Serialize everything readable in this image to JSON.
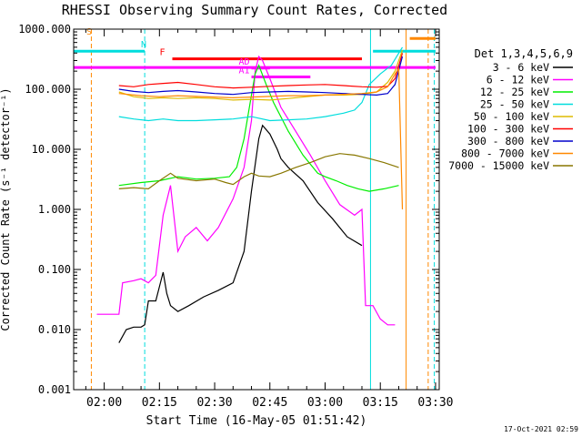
{
  "chart_data": {
    "type": "line",
    "title": "RHESSI Observing Summary Count Rates, Corrected",
    "xlabel": "Start Time (16-May-05 01:51:42)",
    "ylabel": "Corrected Count Rate (s⁻¹ detector⁻¹)",
    "yscale": "log",
    "xlim": [
      "01:51:42",
      "03:31:00"
    ],
    "ylim": [
      0.001,
      1000
    ],
    "x_ticks": [
      "02:00",
      "02:15",
      "02:30",
      "02:45",
      "03:00",
      "03:15",
      "03:30"
    ],
    "y_ticks": [
      "0.001",
      "0.010",
      "0.100",
      "1.000",
      "10.000",
      "100.000",
      "1000.000"
    ],
    "grid": false,
    "legend": {
      "placement": "right",
      "header": "Det 1,3,4,5,6,9",
      "entries": [
        {
          "label": "3 - 6 keV",
          "color": "#000000"
        },
        {
          "label": "6 - 12 keV",
          "color": "#ff00ff"
        },
        {
          "label": "12 - 25 keV",
          "color": "#00ee00"
        },
        {
          "label": "25 - 50 keV",
          "color": "#00dddd"
        },
        {
          "label": "50 - 100 keV",
          "color": "#ddbb00"
        },
        {
          "label": "100 - 300 keV",
          "color": "#ff0000"
        },
        {
          "label": "300 - 800 keV",
          "color": "#0000cc"
        },
        {
          "label": "800 - 7000 keV",
          "color": "#ff8800"
        },
        {
          "label": "7000 - 15000 keV",
          "color": "#887700"
        }
      ]
    },
    "series": [
      {
        "name": "3 - 6 keV",
        "color": "#000000",
        "x": [
          "02:04",
          "02:06",
          "02:08",
          "02:10",
          "02:11",
          "02:12",
          "02:14",
          "02:16",
          "02:17",
          "02:18",
          "02:20",
          "02:23",
          "02:27",
          "02:31",
          "02:35",
          "02:38",
          "02:40",
          "02:42",
          "02:43",
          "02:45",
          "02:47",
          "02:48",
          "02:50",
          "02:54",
          "02:58",
          "03:02",
          "03:06",
          "03:10"
        ],
        "values": [
          0.006,
          0.01,
          0.011,
          0.011,
          0.012,
          0.03,
          0.03,
          0.09,
          0.04,
          0.025,
          0.02,
          0.025,
          0.035,
          0.045,
          0.06,
          0.2,
          2.0,
          15,
          25,
          18,
          10,
          7,
          5,
          3,
          1.3,
          0.7,
          0.35,
          0.25
        ]
      },
      {
        "name": "6 - 12 keV",
        "color": "#ff00ff",
        "x": [
          "01:58",
          "02:04",
          "02:05",
          "02:08",
          "02:10",
          "02:12",
          "02:14",
          "02:16",
          "02:18",
          "02:20",
          "02:22",
          "02:25",
          "02:28",
          "02:31",
          "02:35",
          "02:38",
          "02:40",
          "02:41",
          "02:42",
          "02:43",
          "02:45",
          "02:48",
          "02:52",
          "02:56",
          "03:00",
          "03:04",
          "03:08",
          "03:10",
          "03:11",
          "03:13",
          "03:15",
          "03:17",
          "03:19"
        ],
        "values": [
          0.018,
          0.018,
          0.06,
          0.065,
          0.07,
          0.06,
          0.08,
          0.8,
          2.5,
          0.2,
          0.35,
          0.5,
          0.3,
          0.5,
          1.5,
          5,
          30,
          200,
          350,
          300,
          150,
          50,
          20,
          8,
          3,
          1.2,
          0.8,
          1.0,
          0.025,
          0.025,
          0.015,
          0.012,
          0.012
        ]
      },
      {
        "name": "12 - 25 keV",
        "color": "#00ee00",
        "x": [
          "02:04",
          "02:10",
          "02:15",
          "02:20",
          "02:25",
          "02:30",
          "02:34",
          "02:36",
          "02:38",
          "02:40",
          "02:41",
          "02:42",
          "02:44",
          "02:46",
          "02:50",
          "02:54",
          "02:58",
          "03:00",
          "03:03",
          "03:06",
          "03:09",
          "03:12",
          "03:16",
          "03:20"
        ],
        "values": [
          2.5,
          2.8,
          3.0,
          3.5,
          3.2,
          3.3,
          3.5,
          5,
          15,
          80,
          180,
          250,
          120,
          60,
          20,
          8,
          4,
          3.5,
          3.0,
          2.5,
          2.2,
          2.0,
          2.2,
          2.5
        ]
      },
      {
        "name": "25 - 50 keV",
        "color": "#00dddd",
        "x": [
          "02:04",
          "02:08",
          "02:12",
          "02:16",
          "02:20",
          "02:25",
          "02:30",
          "02:35",
          "02:40",
          "02:45",
          "02:50",
          "02:55",
          "03:00",
          "03:05",
          "03:08",
          "03:10",
          "03:12",
          "03:15",
          "03:18",
          "03:20",
          "03:21"
        ],
        "values": [
          35,
          32,
          30,
          32,
          30,
          30,
          31,
          32,
          35,
          30,
          31,
          32,
          35,
          40,
          45,
          60,
          120,
          180,
          250,
          400,
          500
        ]
      },
      {
        "name": "50 - 100 keV",
        "color": "#ddbb00",
        "x": [
          "02:04",
          "02:08",
          "02:12",
          "02:16",
          "02:20",
          "02:25",
          "02:30",
          "02:35",
          "02:40",
          "02:45",
          "02:50",
          "02:55",
          "03:00",
          "03:05",
          "03:10",
          "03:14",
          "03:17",
          "03:19",
          "03:21"
        ],
        "values": [
          90,
          75,
          70,
          72,
          70,
          72,
          70,
          66,
          68,
          66,
          70,
          75,
          80,
          80,
          82,
          90,
          130,
          200,
          450
        ]
      },
      {
        "name": "100 - 300 keV",
        "color": "#ff0000",
        "x": [
          "02:04",
          "02:08",
          "02:12",
          "02:16",
          "02:20",
          "02:25",
          "02:30",
          "02:35",
          "02:40",
          "02:45",
          "02:50",
          "02:55",
          "03:00",
          "03:05",
          "03:10",
          "03:14",
          "03:17",
          "03:19",
          "03:21"
        ],
        "values": [
          115,
          110,
          120,
          125,
          130,
          120,
          110,
          105,
          108,
          112,
          115,
          118,
          120,
          115,
          110,
          108,
          112,
          150,
          400
        ]
      },
      {
        "name": "300 - 800 keV",
        "color": "#0000cc",
        "x": [
          "02:04",
          "02:08",
          "02:12",
          "02:16",
          "02:20",
          "02:25",
          "02:30",
          "02:35",
          "02:40",
          "02:45",
          "02:50",
          "02:55",
          "03:00",
          "03:05",
          "03:10",
          "03:14",
          "03:17",
          "03:19",
          "03:21"
        ],
        "values": [
          100,
          92,
          88,
          92,
          95,
          90,
          85,
          82,
          88,
          90,
          92,
          90,
          88,
          85,
          82,
          80,
          85,
          120,
          350
        ]
      },
      {
        "name": "800 - 7000 keV",
        "color": "#ff8800",
        "x": [
          "02:04",
          "02:10",
          "02:15",
          "02:20",
          "02:25",
          "02:30",
          "02:35",
          "02:40",
          "02:45",
          "02:50",
          "02:55",
          "03:00",
          "03:05",
          "03:10",
          "03:14",
          "03:17",
          "03:19",
          "03:20",
          "03:21"
        ],
        "values": [
          85,
          78,
          75,
          78,
          76,
          74,
          72,
          74,
          76,
          78,
          78,
          80,
          82,
          85,
          90,
          110,
          180,
          220,
          1.0
        ]
      },
      {
        "name": "7000 - 15000 keV",
        "color": "#887700",
        "x": [
          "02:04",
          "02:08",
          "02:12",
          "02:15",
          "02:18",
          "02:20",
          "02:25",
          "02:30",
          "02:33",
          "02:35",
          "02:38",
          "02:40",
          "02:42",
          "02:45",
          "02:48",
          "02:52",
          "02:56",
          "03:00",
          "03:04",
          "03:08",
          "03:12",
          "03:16",
          "03:20"
        ],
        "values": [
          2.2,
          2.3,
          2.2,
          3.0,
          4.0,
          3.3,
          3.0,
          3.2,
          2.8,
          2.6,
          3.5,
          4.0,
          3.6,
          3.5,
          4.0,
          5.0,
          6.0,
          7.5,
          8.5,
          8.0,
          7.0,
          6.0,
          5.0
        ]
      }
    ],
    "vertical_lines": [
      {
        "x": "01:56:30",
        "color": "#ff8800",
        "style": "dashed"
      },
      {
        "x": "02:11:00",
        "color": "#00dddd",
        "style": "dashed"
      },
      {
        "x": "03:12:20",
        "color": "#00dddd",
        "style": "solid"
      },
      {
        "x": "03:22:00",
        "color": "#ff8800",
        "style": "solid"
      },
      {
        "x": "03:28:00",
        "color": "#ff8800",
        "style": "dashed"
      },
      {
        "x": "03:29:40",
        "color": "#00dddd",
        "style": "dashed"
      }
    ],
    "flag_bars": [
      {
        "label": "S",
        "color": "#ff8800",
        "y": 700,
        "segments": [
          [
            "03:23:00",
            "03:30:00"
          ]
        ]
      },
      {
        "label": "N",
        "color": "#00dddd",
        "y": 430,
        "segments": [
          [
            "01:51:42",
            "02:11:00"
          ],
          [
            "03:13:00",
            "03:30:00"
          ]
        ]
      },
      {
        "label": "F",
        "color": "#ff0000",
        "y": 320,
        "segments": [
          [
            "02:18:30",
            "03:10:00"
          ]
        ]
      },
      {
        "label": "",
        "color": "#ff00ff",
        "y": 230,
        "segments": [
          [
            "01:51:42",
            "03:30:00"
          ]
        ]
      },
      {
        "label": "AD",
        "color": "#ff00ff",
        "y": 225,
        "segments": [
          [
            "02:40:00",
            "02:45:00"
          ]
        ]
      },
      {
        "label": "A1",
        "color": "#ff00ff",
        "y": 160,
        "segments": [
          [
            "02:40:00",
            "02:56:00"
          ]
        ]
      }
    ]
  },
  "timestamp": "17-Oct-2021 02:59"
}
